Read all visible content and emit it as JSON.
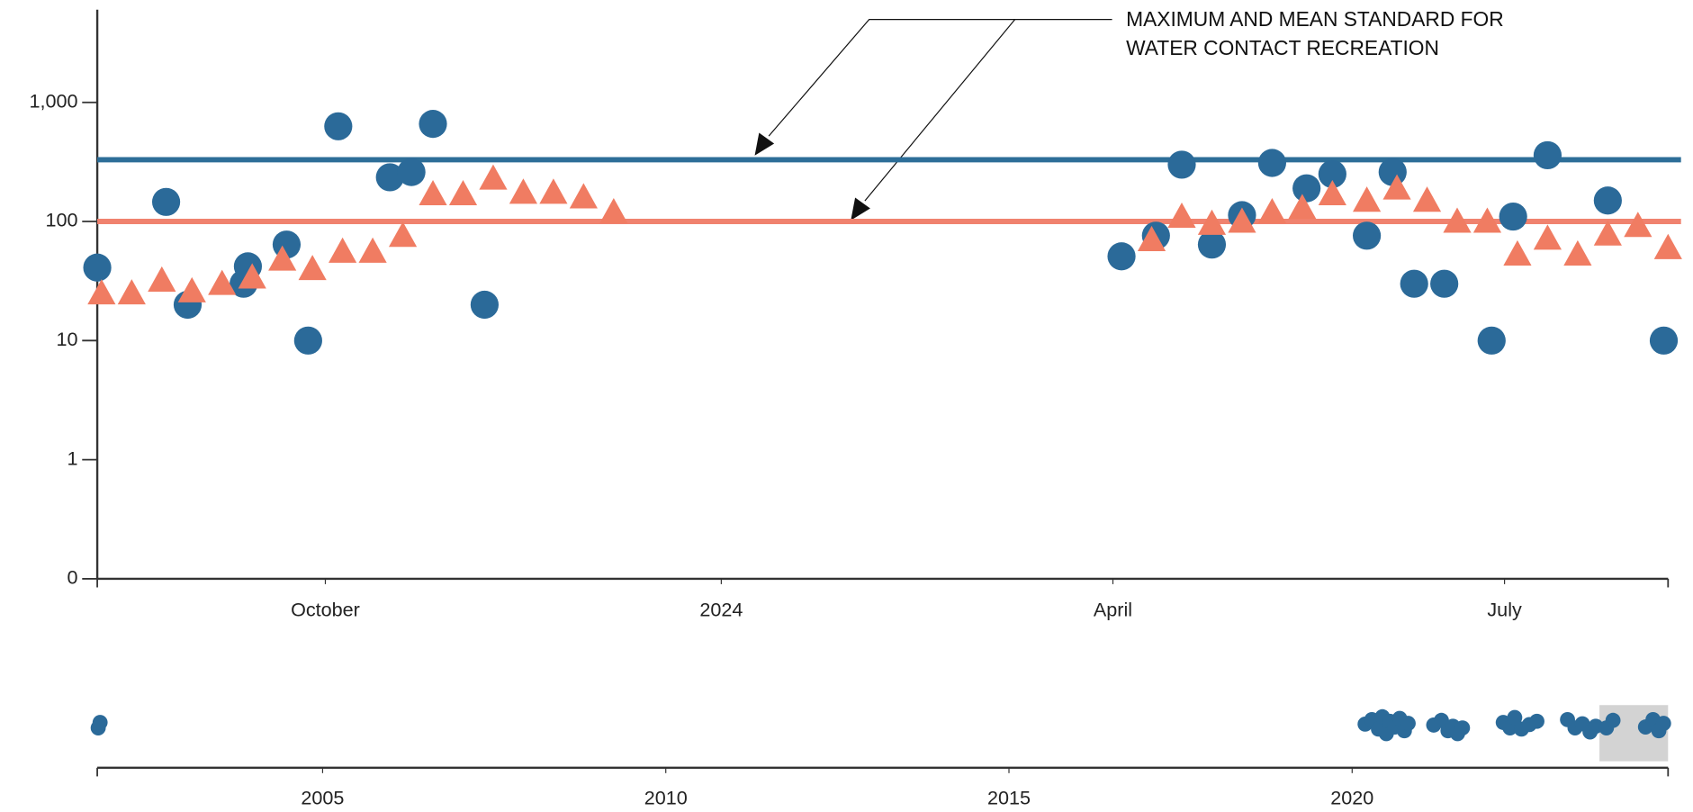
{
  "chart_data": [
    {
      "type": "scatter",
      "yscale": "log",
      "xlim": [
        "2023-08-09",
        "2024-08-08"
      ],
      "xticks": [
        {
          "value": "2023-10-01",
          "label": "October"
        },
        {
          "value": "2024-01-01",
          "label": "2024"
        },
        {
          "value": "2024-04-01",
          "label": "April"
        },
        {
          "value": "2024-07-01",
          "label": "July"
        }
      ],
      "ylim": [
        0.1,
        6000
      ],
      "yticks": [
        {
          "value": 0.1,
          "label": "0"
        },
        1,
        10,
        100,
        {
          "value": 1000,
          "label": "1,000"
        }
      ],
      "annotation": [
        "MAXIMUM AND MEAN STANDARD FOR",
        "WATER CONTACT RECREATION"
      ],
      "hlines": [
        {
          "value": 330,
          "color": "#2d6e98"
        },
        {
          "value": 100,
          "color": "#f0826f"
        }
      ],
      "series": [
        {
          "marker": "circle",
          "color": "#2b6a99",
          "x": [
            "2023-08-09",
            "2023-08-25",
            "2023-08-30",
            "2023-09-12",
            "2023-09-13",
            "2023-09-22",
            "2023-09-27",
            "2023-10-04",
            "2023-10-16",
            "2023-10-21",
            "2023-10-26",
            "2023-11-07",
            "2024-04-03",
            "2024-04-11",
            "2024-04-17",
            "2024-04-24",
            "2024-05-01",
            "2024-05-08",
            "2024-05-16",
            "2024-05-22",
            "2024-05-30",
            "2024-06-05",
            "2024-06-10",
            "2024-06-17",
            "2024-06-28",
            "2024-07-03",
            "2024-07-11",
            "2024-07-25",
            "2024-08-07"
          ],
          "values": [
            41,
            146,
            20,
            30,
            42,
            64,
            10,
            630,
            235,
            260,
            660,
            20,
            51,
            76,
            300,
            64,
            113,
            310,
            190,
            250,
            76,
            260,
            30,
            30,
            10,
            110,
            360,
            150,
            10
          ]
        },
        {
          "marker": "triangle",
          "color": "#f07c62",
          "x": [
            "2023-08-10",
            "2023-08-17",
            "2023-08-24",
            "2023-08-31",
            "2023-09-07",
            "2023-09-14",
            "2023-09-21",
            "2023-09-28",
            "2023-10-05",
            "2023-10-12",
            "2023-10-19",
            "2023-10-26",
            "2023-11-02",
            "2023-11-09",
            "2023-11-16",
            "2023-11-23",
            "2023-11-30",
            "2023-12-07",
            "2024-04-10",
            "2024-04-17",
            "2024-04-24",
            "2024-05-01",
            "2024-05-08",
            "2024-05-15",
            "2024-05-22",
            "2024-05-30",
            "2024-06-06",
            "2024-06-13",
            "2024-06-20",
            "2024-06-27",
            "2024-07-04",
            "2024-07-11",
            "2024-07-18",
            "2024-07-25",
            "2024-08-01",
            "2024-08-08"
          ],
          "values": [
            25,
            25,
            32,
            26,
            30,
            34,
            48,
            40,
            56,
            56,
            76,
            170,
            170,
            230,
            175,
            175,
            160,
            120,
            70,
            110,
            96,
            100,
            120,
            130,
            170,
            150,
            190,
            150,
            100,
            100,
            53,
            72,
            53,
            78,
            92,
            60
          ]
        }
      ]
    },
    {
      "type": "scatter",
      "yscale": "log",
      "xlim": [
        "2001-09-20",
        "2024-08-08"
      ],
      "xticks": [
        {
          "value": "2005-01-01",
          "label": "2005"
        },
        {
          "value": "2010-01-01",
          "label": "2010"
        },
        {
          "value": "2015-01-01",
          "label": "2015"
        },
        {
          "value": "2020-01-01",
          "label": "2020"
        }
      ],
      "ylim": [
        0.1,
        6000
      ],
      "series": [
        {
          "marker": "circle",
          "color": "#2b6a99",
          "x": [
            "2001-09-25",
            "2001-10-05",
            "2020-03-10",
            "2020-04-15",
            "2020-05-20",
            "2020-06-10",
            "2020-07-01",
            "2020-07-20",
            "2020-08-15",
            "2020-09-10",
            "2020-10-05",
            "2020-10-25",
            "2021-03-10",
            "2021-04-20",
            "2021-05-25",
            "2021-06-20",
            "2021-07-15",
            "2021-08-10",
            "2022-03-15",
            "2022-04-20",
            "2022-05-15",
            "2022-06-20",
            "2022-08-01",
            "2022-09-10",
            "2023-02-20",
            "2023-04-01",
            "2023-05-10",
            "2023-06-20",
            "2023-07-20",
            "2023-09-15",
            "2023-10-20",
            "2024-04-10",
            "2024-05-20",
            "2024-06-20",
            "2024-07-15"
          ],
          "values": [
            40,
            150,
            100,
            300,
            30,
            600,
            10,
            200,
            50,
            400,
            20,
            120,
            80,
            250,
            20,
            60,
            10,
            40,
            150,
            40,
            500,
            30,
            90,
            200,
            300,
            40,
            110,
            15,
            60,
            40,
            250,
            50,
            300,
            20,
            120
          ]
        }
      ]
    }
  ]
}
